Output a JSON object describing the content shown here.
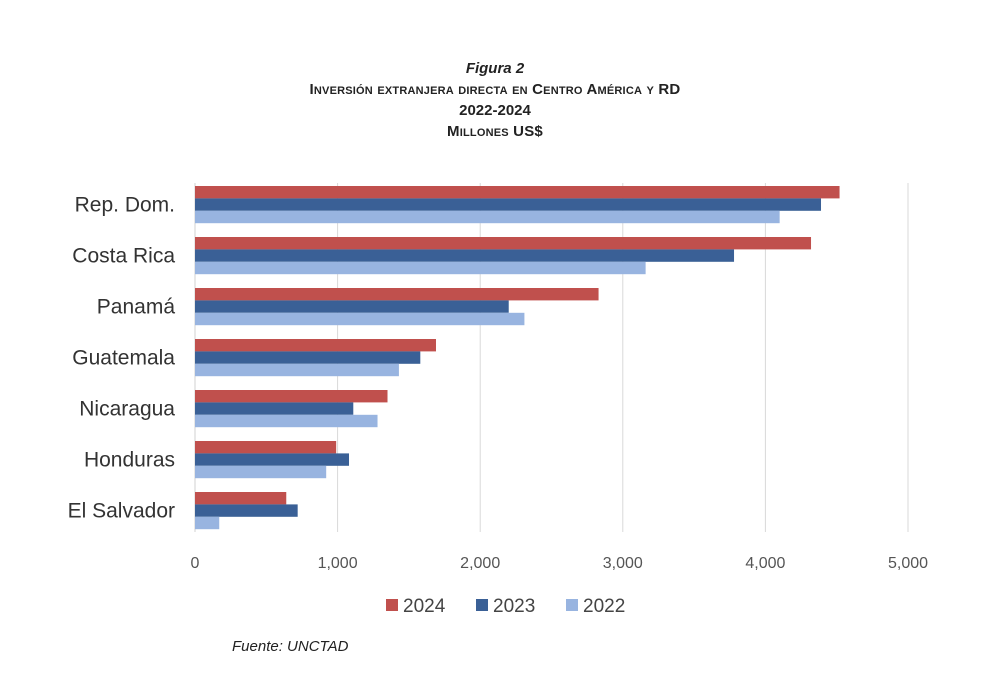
{
  "header": {
    "figure": "Figura 2",
    "title": "Inversión extranjera directa en Centro América y RD",
    "period": "2022-2024",
    "units": "Millones US$"
  },
  "source": "Fuente: UNCTAD",
  "chart_data": {
    "type": "bar",
    "orientation": "horizontal",
    "categories": [
      "Rep. Dom.",
      "Costa Rica",
      "Panamá",
      "Guatemala",
      "Nicaragua",
      "Honduras",
      "El Salvador"
    ],
    "series": [
      {
        "name": "2024",
        "color": "#c0504d",
        "values": [
          4520,
          4320,
          2830,
          1690,
          1350,
          990,
          640
        ]
      },
      {
        "name": "2023",
        "color": "#3a6096",
        "values": [
          4390,
          3780,
          2200,
          1580,
          1110,
          1080,
          720
        ]
      },
      {
        "name": "2022",
        "color": "#98b4e0",
        "values": [
          4100,
          3160,
          2310,
          1430,
          1280,
          920,
          170
        ]
      }
    ],
    "xlim": [
      0,
      5000
    ],
    "xticks": [
      0,
      1000,
      2000,
      3000,
      4000,
      5000
    ],
    "xtick_labels": [
      "0",
      "1,000",
      "2,000",
      "3,000",
      "4,000",
      "5,000"
    ],
    "grid": true,
    "legend_position": "bottom"
  }
}
